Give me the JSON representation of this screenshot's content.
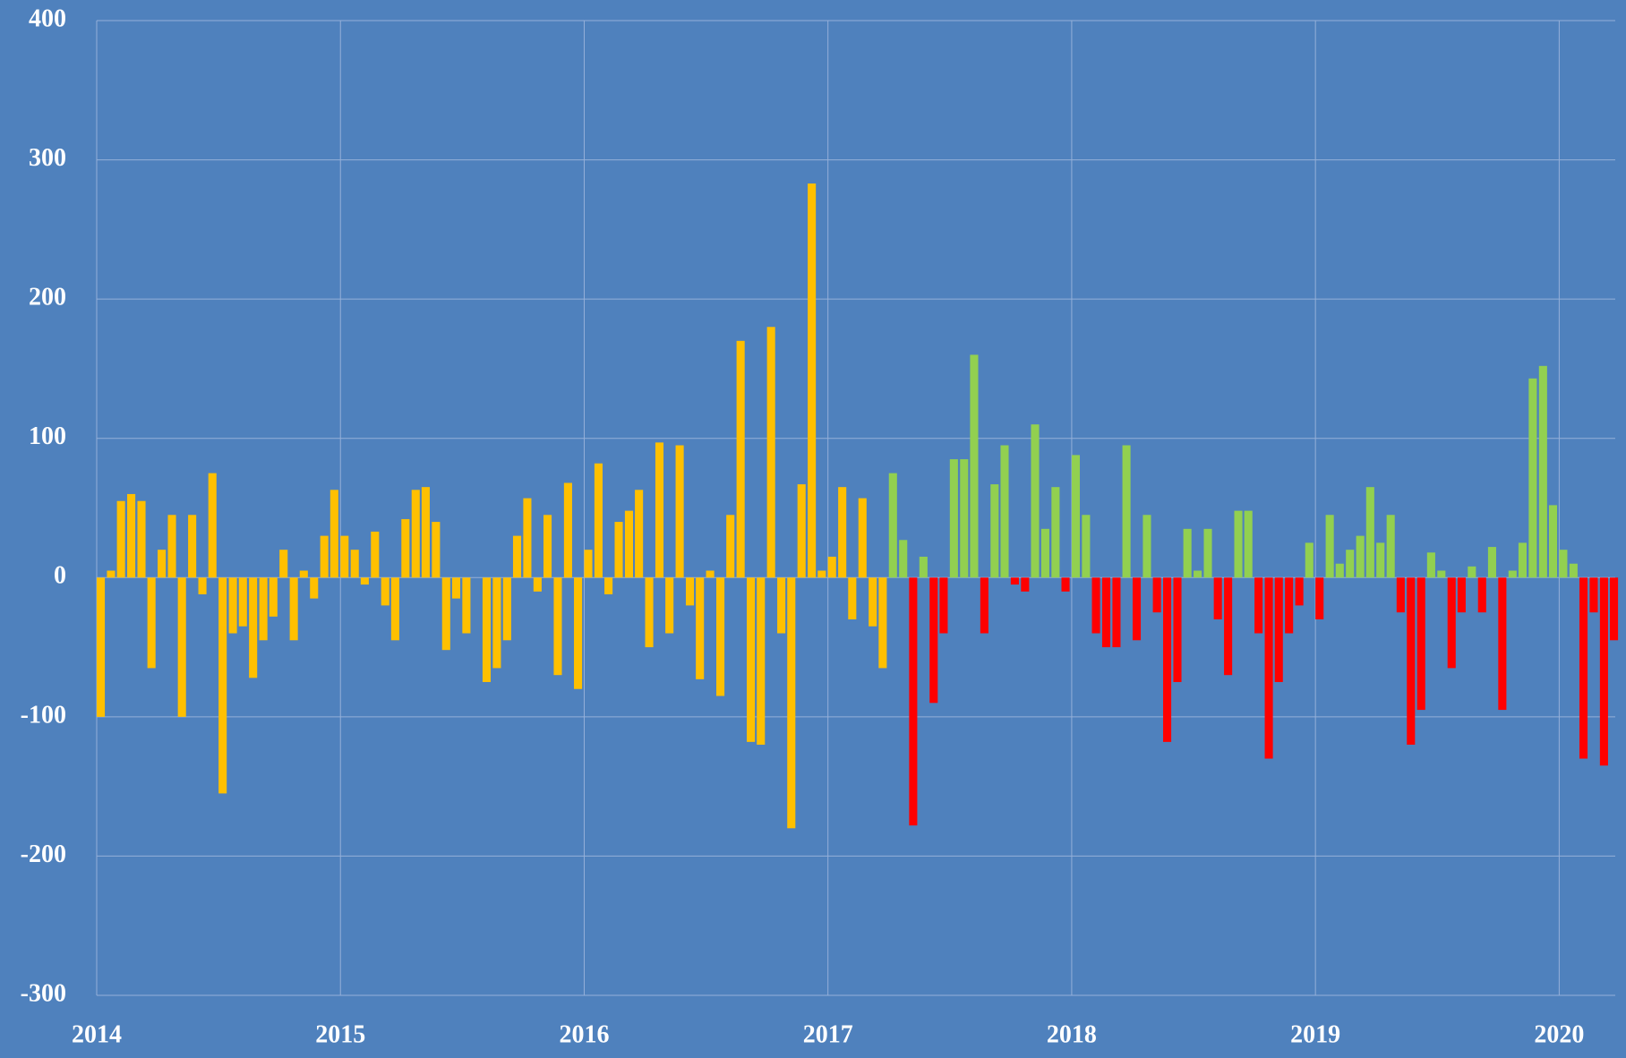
{
  "chart_data": {
    "type": "bar",
    "xlim": [
      2014,
      2020.23
    ],
    "xticks": [
      2014,
      2015,
      2016,
      2017,
      2018,
      2019,
      2020
    ],
    "ylim": [
      -300,
      400
    ],
    "yticks": [
      -300,
      -200,
      -100,
      0,
      100,
      200,
      300,
      400
    ],
    "grid": true,
    "bar_width": 0.0417,
    "series": [
      {
        "color": "#ffc000",
        "x": [
          2014,
          2014.042,
          2014.083,
          2014.125,
          2014.167,
          2014.208,
          2014.25,
          2014.292,
          2014.333,
          2014.375,
          2014.417,
          2014.458,
          2014.5,
          2014.542,
          2014.583,
          2014.625,
          2014.667,
          2014.708,
          2014.75,
          2014.792,
          2014.833,
          2014.875,
          2014.917,
          2014.958,
          2015,
          2015.042,
          2015.083,
          2015.125,
          2015.167,
          2015.208,
          2015.25,
          2015.292,
          2015.333,
          2015.375,
          2015.417,
          2015.458,
          2015.5,
          2015.542,
          2015.583,
          2015.625,
          2015.667,
          2015.708,
          2015.75,
          2015.792,
          2015.833,
          2015.875,
          2015.917,
          2015.958,
          2016,
          2016.042,
          2016.083,
          2016.125,
          2016.167,
          2016.208,
          2016.25,
          2016.292,
          2016.333,
          2016.375,
          2016.417,
          2016.458,
          2016.5,
          2016.542,
          2016.583,
          2016.625,
          2016.667,
          2016.708,
          2016.75,
          2016.792,
          2016.833,
          2016.875,
          2016.917,
          2016.958,
          2017,
          2017.042,
          2017.083,
          2017.125,
          2017.167,
          2017.208
        ],
        "values": [
          -100,
          5,
          55,
          60,
          55,
          -65,
          20,
          45,
          -100,
          45,
          -12,
          75,
          -155,
          -40,
          -35,
          -72,
          -45,
          -28,
          20,
          -45,
          5,
          -15,
          30,
          63,
          30,
          20,
          -5,
          33,
          -20,
          -45,
          42,
          63,
          65,
          40,
          -52,
          -15,
          -40,
          0,
          -75,
          -65,
          -45,
          30,
          57,
          -10,
          45,
          -70,
          68,
          -80,
          20,
          82,
          -12,
          40,
          48,
          63,
          -50,
          97,
          -40,
          95,
          -20,
          -73,
          5,
          -85,
          45,
          170,
          -118,
          -120,
          180,
          -40,
          -180,
          67,
          283,
          5,
          15,
          65,
          -30,
          57,
          -35,
          -65
        ]
      },
      {
        "color": "#92d050",
        "x": [
          2017.25,
          2017.292,
          2017.375,
          2017.5,
          2017.542,
          2017.583,
          2017.667,
          2017.708,
          2017.833,
          2017.875,
          2017.917,
          2018,
          2018.042,
          2018.208,
          2018.292,
          2018.458,
          2018.5,
          2018.542,
          2018.667,
          2018.708,
          2018.958,
          2019.042,
          2019.083,
          2019.125,
          2019.167,
          2019.208,
          2019.25,
          2019.292,
          2019.458,
          2019.5,
          2019.625,
          2019.708,
          2019.792,
          2019.833,
          2019.875,
          2019.917,
          2019.958,
          2020,
          2020.042
        ],
        "values": [
          75,
          27,
          15,
          85,
          85,
          160,
          67,
          95,
          110,
          35,
          65,
          88,
          45,
          95,
          45,
          35,
          5,
          35,
          48,
          48,
          25,
          45,
          10,
          20,
          30,
          65,
          25,
          45,
          18,
          5,
          8,
          22,
          5,
          25,
          143,
          152,
          52,
          20,
          10
        ]
      },
      {
        "color": "#ff0000",
        "x": [
          2017.333,
          2017.417,
          2017.458,
          2017.625,
          2017.75,
          2017.792,
          2017.958,
          2018.083,
          2018.125,
          2018.167,
          2018.25,
          2018.333,
          2018.375,
          2018.417,
          2018.583,
          2018.625,
          2018.75,
          2018.792,
          2018.833,
          2018.875,
          2018.917,
          2019,
          2019.333,
          2019.375,
          2019.417,
          2019.542,
          2019.583,
          2019.667,
          2019.75,
          2020.083,
          2020.125,
          2020.167,
          2020.208
        ],
        "values": [
          -178,
          -90,
          -40,
          -40,
          -5,
          -10,
          -10,
          -40,
          -50,
          -50,
          -45,
          -25,
          -118,
          -75,
          -30,
          -70,
          -40,
          -130,
          -75,
          -40,
          -20,
          -30,
          -25,
          -120,
          -95,
          -65,
          -25,
          -25,
          -95,
          -130,
          -25,
          -135,
          -45
        ]
      }
    ]
  }
}
